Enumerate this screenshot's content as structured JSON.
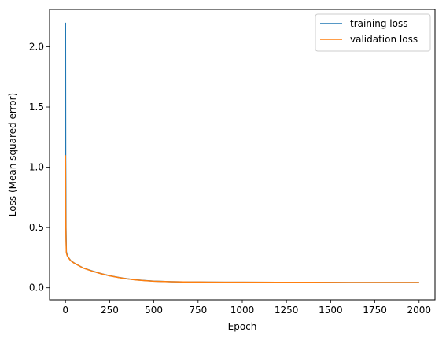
{
  "chart_data": {
    "type": "line",
    "title": "",
    "xlabel": "Epoch",
    "ylabel": "Loss (Mean squared error)",
    "xlim": [
      -90,
      2090
    ],
    "ylim": [
      -0.1,
      2.31
    ],
    "xticks": [
      0,
      250,
      500,
      750,
      1000,
      1250,
      1500,
      1750,
      2000
    ],
    "xtick_labels": [
      "0",
      "250",
      "500",
      "750",
      "1000",
      "1250",
      "1500",
      "1750",
      "2000"
    ],
    "yticks": [
      0.0,
      0.5,
      1.0,
      1.5,
      2.0
    ],
    "ytick_labels": [
      "0.0",
      "0.5",
      "1.0",
      "1.5",
      "2.0"
    ],
    "grid": false,
    "legend_position": "top-right",
    "series": [
      {
        "name": "training loss",
        "color": "#1f77b4",
        "x": [
          0,
          1,
          3,
          5,
          10,
          20,
          30,
          50,
          75,
          100,
          150,
          200,
          250,
          300,
          350,
          400,
          450,
          500,
          600,
          700,
          800,
          900,
          1000,
          1200,
          1400,
          1600,
          1800,
          2000
        ],
        "y": [
          2.2,
          1.1,
          0.5,
          0.3,
          0.27,
          0.245,
          0.225,
          0.205,
          0.185,
          0.165,
          0.14,
          0.118,
          0.1,
          0.086,
          0.075,
          0.066,
          0.06,
          0.055,
          0.05,
          0.048,
          0.047,
          0.046,
          0.046,
          0.045,
          0.045,
          0.044,
          0.044,
          0.044
        ]
      },
      {
        "name": "validation loss",
        "color": "#ff7f0e",
        "x": [
          0,
          1,
          3,
          5,
          10,
          20,
          30,
          50,
          75,
          100,
          150,
          200,
          250,
          300,
          350,
          400,
          450,
          500,
          600,
          700,
          800,
          900,
          1000,
          1200,
          1400,
          1600,
          1800,
          2000
        ],
        "y": [
          1.1,
          0.7,
          0.4,
          0.29,
          0.265,
          0.243,
          0.224,
          0.204,
          0.184,
          0.164,
          0.139,
          0.117,
          0.099,
          0.085,
          0.074,
          0.065,
          0.059,
          0.054,
          0.05,
          0.048,
          0.047,
          0.046,
          0.046,
          0.045,
          0.045,
          0.044,
          0.044,
          0.044
        ]
      }
    ]
  }
}
